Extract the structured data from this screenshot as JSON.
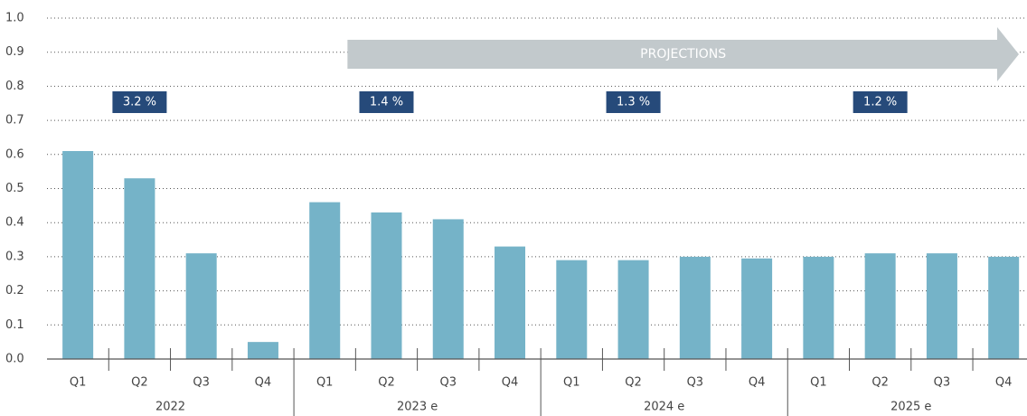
{
  "chart_data": {
    "type": "bar",
    "categories": [
      "Q1",
      "Q2",
      "Q3",
      "Q4",
      "Q1",
      "Q2",
      "Q3",
      "Q4",
      "Q1",
      "Q2",
      "Q3",
      "Q4",
      "Q1",
      "Q2",
      "Q3",
      "Q4"
    ],
    "groups": [
      "2022",
      "2023 e",
      "2024 e",
      "2025 e"
    ],
    "values": [
      0.61,
      0.53,
      0.31,
      0.05,
      0.46,
      0.43,
      0.41,
      0.33,
      0.29,
      0.29,
      0.3,
      0.295,
      0.3,
      0.31,
      0.31,
      0.3
    ],
    "color": "#75b3c8",
    "ylim": [
      0,
      1
    ],
    "yticks": [
      {
        "value": 0,
        "label": "0.0"
      },
      0.1,
      0.2,
      0.3,
      0.4,
      0.5,
      0.6,
      0.7,
      0.8,
      0.9,
      {
        "value": 1,
        "label": "1.0"
      }
    ],
    "grid": true,
    "annual_growth": {
      "values": [
        3.2,
        1.4,
        1.3,
        1.2
      ],
      "value_labels": [
        "3.2 %",
        "1.4 %",
        "1.3 %",
        "1.2 %"
      ],
      "color": "#264a7a"
    },
    "annotation": "PROJECTIONS"
  }
}
